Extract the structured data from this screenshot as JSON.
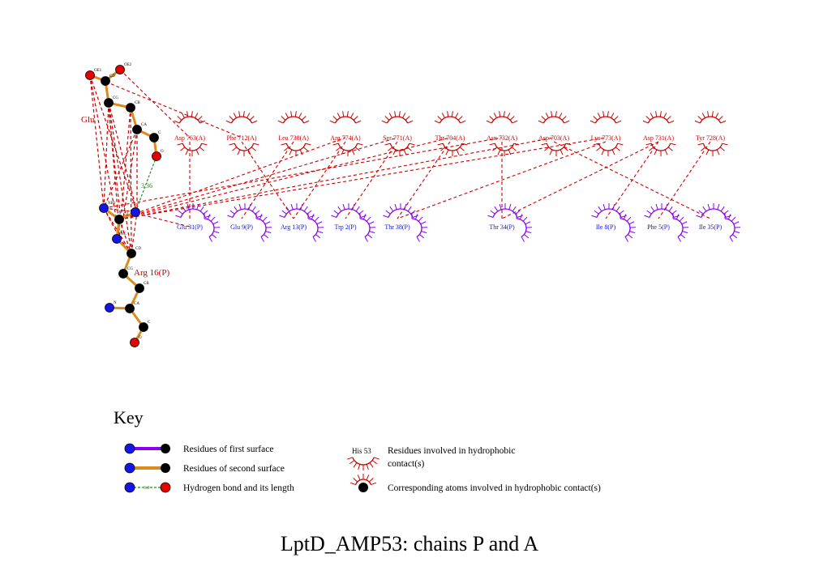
{
  "title": "LptD_AMP53: chains P and A",
  "colors": {
    "hydrophobic_A": "#cc0000",
    "hydrophobic_P": "#8800ee",
    "bond_second": "#d98b1e",
    "bond_first": "#8800ee",
    "hbond": "#228b22",
    "atom_N": "#1414e6",
    "atom_O": "#e60000",
    "atom_C": "#000000",
    "label_A": "#cc0000",
    "label_P": "#1414c8"
  },
  "residues": {
    "glu": {
      "name": "Glu 774(A)",
      "label_visible": "Glu",
      "atoms": {
        "OE1": "OE1",
        "OE2": "OE2",
        "CD": "CD",
        "CG": "CG",
        "CB": "CB",
        "CA": "CA",
        "C": "C",
        "O": "O"
      }
    },
    "arg": {
      "name": "Arg 16(P)",
      "atoms": {
        "NH1": "NH1",
        "CZ": "CZ",
        "NE": "NE",
        "CD": "CD",
        "CG": "CG",
        "CB": "CB",
        "CA": "CA",
        "N": "N",
        "C": "C",
        "O": "O"
      }
    }
  },
  "hbond_length": "3.36",
  "hydrophobic_A": [
    "Asp 763(A)",
    "Phe 712(A)",
    "Leu 738(A)",
    "Arg 774(A)",
    "Ser 771(A)",
    "Thr 704(A)",
    "Asn 732(A)",
    "Asp 703(A)",
    "Lys 773(A)",
    "Asp 731(A)",
    "Tyr 728(A)"
  ],
  "hydrophobic_P": [
    "Glu 31(P)",
    "Glu 9(P)",
    "Arg 13(P)",
    "Trp 2(P)",
    "Thr 38(P)",
    "Thr 34(P)",
    "Ile 8(P)",
    "Phe 5(P)",
    "Ile 35(P)"
  ],
  "key": {
    "heading": "Key",
    "first_surface": "Residues of first surface",
    "second_surface": "Residues of second surface",
    "hbond": "Hydrogen bond and its length",
    "hbond_sample": "3.0",
    "hydrophobic_line1": "Residues involved in hydrophobic",
    "hydrophobic_line2": "contact(s)",
    "hydrophobic_example": "His 53",
    "corresponding_atoms": "Corresponding atoms involved in hydrophobic contact(s)"
  }
}
